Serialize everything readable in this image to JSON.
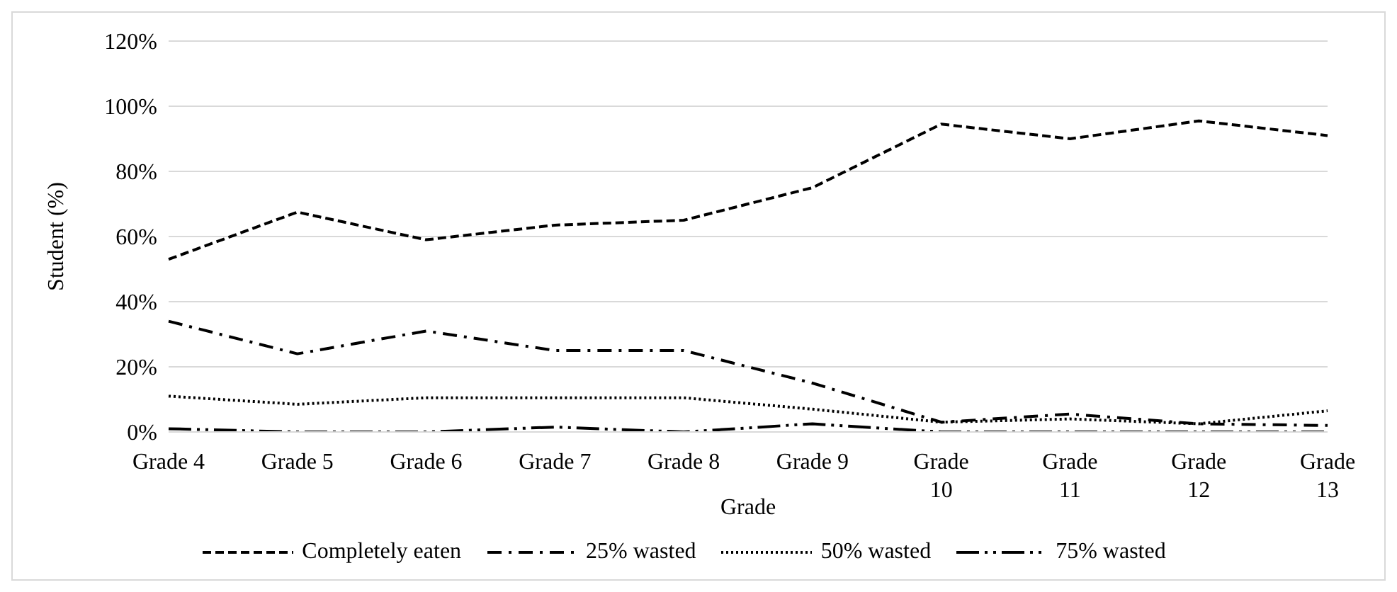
{
  "chart_data": {
    "type": "line",
    "xlabel": "Grade",
    "ylabel": "Student (%)",
    "categories": [
      "Grade 4",
      "Grade 5",
      "Grade 6",
      "Grade 7",
      "Grade 8",
      "Grade 9",
      "Grade 10",
      "Grade 11",
      "Grade 12",
      "Grade 13"
    ],
    "series": [
      {
        "name": "Completely eaten",
        "color": "#000000",
        "line_style": "dashed",
        "values": [
          53,
          67.5,
          59,
          63.5,
          65,
          75,
          94.5,
          90,
          95.5,
          91
        ]
      },
      {
        "name": "25% wasted",
        "color": "#000000",
        "line_style": "dashed",
        "values": [
          34,
          24,
          31,
          25,
          25,
          15,
          3,
          5.5,
          2.5,
          2
        ]
      },
      {
        "name": "50% wasted",
        "color": "#000000",
        "line_style": "dotted",
        "values": [
          11,
          8.5,
          10.5,
          10.5,
          10.5,
          7,
          3,
          4,
          2.5,
          6.5
        ]
      },
      {
        "name": "75% wasted",
        "color": "#000000",
        "line_style": "dashed",
        "values": [
          1,
          0,
          0,
          1.5,
          0,
          2.5,
          0,
          0,
          0,
          0
        ]
      }
    ],
    "ylim": [
      0,
      120
    ],
    "yticks": [
      {
        "value": 0,
        "label": "0%"
      },
      {
        "value": 20,
        "label": "20%"
      },
      {
        "value": 40,
        "label": "40%"
      },
      {
        "value": 60,
        "label": "60%"
      },
      {
        "value": 80,
        "label": "80%"
      },
      {
        "value": 100,
        "label": "100%"
      },
      {
        "value": 120,
        "label": "120%"
      }
    ],
    "grid": "y",
    "legend": "bottom",
    "marker": "none"
  }
}
